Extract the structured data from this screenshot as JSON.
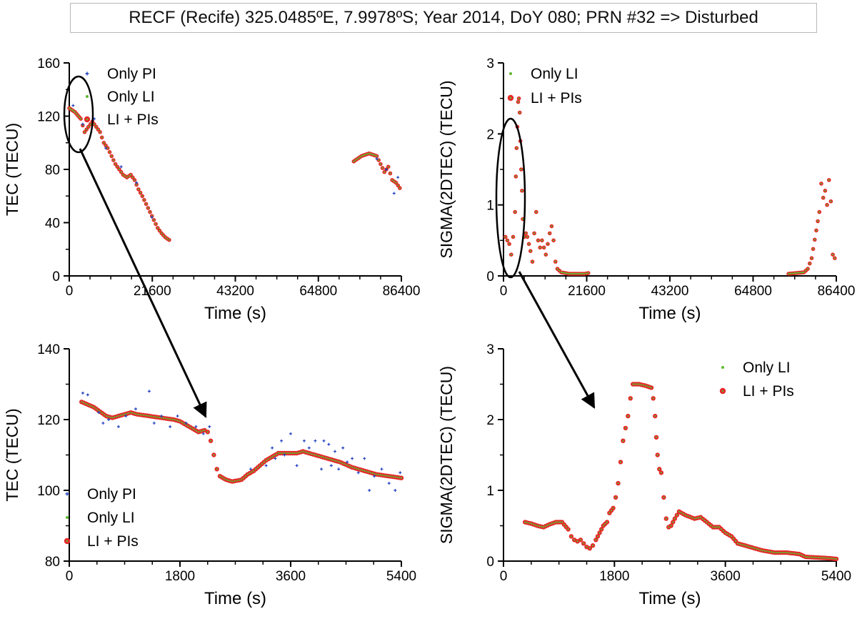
{
  "figure_title": "RECF (Recife)  325.0485ºE, 7.9978ºS; Year 2014, DoY 080; PRN #32 => Disturbed",
  "colors": {
    "only_pi": "#1f3fbf",
    "only_li": "#5fb82e",
    "li_pis": "#e8272a",
    "axis": "#000000"
  },
  "chart_data": [
    {
      "id": "tec-full",
      "type": "scatter",
      "xlabel": "Time (s)",
      "ylabel": "TEC (TECU)",
      "xlim": [
        0,
        86400
      ],
      "ylim": [
        0,
        160
      ],
      "xticks": [
        0,
        21600,
        43200,
        64800,
        86400
      ],
      "yticks": [
        0,
        40,
        80,
        120,
        160
      ],
      "legend": [
        "Only PI",
        "Only LI",
        "LI + PIs"
      ],
      "legend_position": "top-left",
      "series": [
        {
          "name": "LI + PIs",
          "points": [
            [
              0,
              126
            ],
            [
              1500,
              123
            ],
            [
              3000,
              118
            ],
            [
              4000,
              108
            ],
            [
              5000,
              112
            ],
            [
              6000,
              116
            ],
            [
              7000,
              112
            ],
            [
              8000,
              108
            ],
            [
              9000,
              100
            ],
            [
              10000,
              96
            ],
            [
              11000,
              90
            ],
            [
              12000,
              84
            ],
            [
              13000,
              80
            ],
            [
              14000,
              76
            ],
            [
              15000,
              74
            ],
            [
              16000,
              76
            ],
            [
              17000,
              72
            ],
            [
              18000,
              65
            ],
            [
              19000,
              60
            ],
            [
              20000,
              54
            ],
            [
              21000,
              48
            ],
            [
              22000,
              42
            ],
            [
              23000,
              36
            ],
            [
              24000,
              32
            ],
            [
              25000,
              29
            ],
            [
              26000,
              27
            ],
            [
              74000,
              86
            ],
            [
              76000,
              90
            ],
            [
              78000,
              92
            ],
            [
              80000,
              90
            ],
            [
              81000,
              84
            ],
            [
              82000,
              78
            ],
            [
              83000,
              82
            ],
            [
              84000,
              72
            ],
            [
              85000,
              70
            ],
            [
              86000,
              66
            ]
          ]
        },
        {
          "name": "Only PI",
          "points": [
            [
              1000,
              128
            ],
            [
              3500,
              114
            ],
            [
              6500,
              118
            ],
            [
              9500,
              96
            ],
            [
              13500,
              82
            ],
            [
              17500,
              70
            ],
            [
              21500,
              44
            ],
            [
              80000,
              88
            ],
            [
              82500,
              80
            ],
            [
              84500,
              62
            ],
            [
              85500,
              74
            ]
          ]
        }
      ]
    },
    {
      "id": "sigma-full",
      "type": "scatter",
      "xlabel": "Time (s)",
      "ylabel": "SIGMA(2DTEC) (TECU)",
      "xlim": [
        0,
        86400
      ],
      "ylim": [
        0,
        3
      ],
      "xticks": [
        0,
        21600,
        43200,
        64800,
        86400
      ],
      "yticks": [
        0,
        1,
        2,
        3
      ],
      "legend": [
        "Only LI",
        "LI + PIs"
      ],
      "legend_position": "top",
      "series": [
        {
          "name": "LI + PIs",
          "points": [
            [
              500,
              0.55
            ],
            [
              1000,
              0.5
            ],
            [
              1500,
              0.45
            ],
            [
              2000,
              0.3
            ],
            [
              2500,
              0.55
            ],
            [
              3000,
              0.9
            ],
            [
              3200,
              1.4
            ],
            [
              3400,
              1.8
            ],
            [
              3600,
              2.1
            ],
            [
              3800,
              2.45
            ],
            [
              4000,
              2.5
            ],
            [
              4200,
              2.3
            ],
            [
              4400,
              1.9
            ],
            [
              4600,
              1.5
            ],
            [
              4800,
              1.2
            ],
            [
              5000,
              0.8
            ],
            [
              5400,
              0.55
            ],
            [
              5800,
              0.6
            ],
            [
              6200,
              0.55
            ],
            [
              6600,
              0.45
            ],
            [
              7000,
              0.35
            ],
            [
              7500,
              0.2
            ],
            [
              8000,
              0.6
            ],
            [
              8500,
              0.9
            ],
            [
              9000,
              0.5
            ],
            [
              9500,
              0.4
            ],
            [
              10000,
              0.5
            ],
            [
              11000,
              0.3
            ],
            [
              12000,
              0.6
            ],
            [
              12500,
              0.7
            ],
            [
              13000,
              0.5
            ],
            [
              13500,
              0.2
            ],
            [
              14000,
              0.1
            ],
            [
              15000,
              0.05
            ],
            [
              17000,
              0.03
            ],
            [
              19000,
              0.03
            ],
            [
              21000,
              0.03
            ],
            [
              22000,
              0.04
            ],
            [
              74000,
              0.03
            ],
            [
              76000,
              0.04
            ],
            [
              78000,
              0.05
            ],
            [
              79000,
              0.1
            ],
            [
              80000,
              0.25
            ],
            [
              82000,
              0.9
            ],
            [
              82500,
              1.3
            ],
            [
              83000,
              1.1
            ],
            [
              83500,
              1.2
            ],
            [
              84000,
              1.0
            ],
            [
              84500,
              1.35
            ],
            [
              85000,
              1.05
            ],
            [
              85500,
              0.3
            ],
            [
              86000,
              0.25
            ]
          ]
        }
      ]
    },
    {
      "id": "tec-zoom",
      "type": "scatter",
      "xlabel": "Time (s)",
      "ylabel": "TEC (TECU)",
      "xlim": [
        0,
        5400
      ],
      "ylim": [
        80,
        140
      ],
      "xticks": [
        0,
        1800,
        3600,
        5400
      ],
      "yticks": [
        80,
        100,
        120,
        140
      ],
      "legend": [
        "Only PI",
        "Only LI",
        "LI + PIs"
      ],
      "legend_position": "bottom-left",
      "series": [
        {
          "name": "LI + PIs",
          "points": [
            [
              200,
              125
            ],
            [
              400,
              123.5
            ],
            [
              600,
              121
            ],
            [
              700,
              120.5
            ],
            [
              900,
              121.5
            ],
            [
              1000,
              122
            ],
            [
              1100,
              121.5
            ],
            [
              1300,
              121
            ],
            [
              1500,
              120.5
            ],
            [
              1700,
              120
            ],
            [
              1800,
              119.5
            ],
            [
              1900,
              118.5
            ],
            [
              2000,
              117.5
            ],
            [
              2100,
              116.5
            ],
            [
              2200,
              117
            ],
            [
              2250,
              116.5
            ],
            [
              2300,
              114
            ],
            [
              2350,
              110
            ],
            [
              2400,
              106
            ],
            [
              2450,
              104
            ],
            [
              2550,
              103
            ],
            [
              2650,
              102.5
            ],
            [
              2800,
              103
            ],
            [
              2900,
              104.5
            ],
            [
              3000,
              105.5
            ],
            [
              3100,
              107
            ],
            [
              3200,
              108.5
            ],
            [
              3300,
              109.5
            ],
            [
              3400,
              110.5
            ],
            [
              3500,
              110.5
            ],
            [
              3600,
              110.5
            ],
            [
              3700,
              110.5
            ],
            [
              3800,
              111
            ],
            [
              3900,
              110.5
            ],
            [
              4000,
              110
            ],
            [
              4200,
              109
            ],
            [
              4400,
              108
            ],
            [
              4600,
              106.5
            ],
            [
              4800,
              105.5
            ],
            [
              5000,
              104.5
            ],
            [
              5200,
              104
            ],
            [
              5400,
              103.5
            ]
          ]
        },
        {
          "name": "Only PI",
          "points": [
            [
              220,
              127.5
            ],
            [
              300,
              127
            ],
            [
              480,
              122
            ],
            [
              550,
              119
            ],
            [
              640,
              120
            ],
            [
              800,
              118
            ],
            [
              920,
              121
            ],
            [
              1080,
              123
            ],
            [
              1300,
              128
            ],
            [
              1380,
              119
            ],
            [
              1500,
              121
            ],
            [
              1640,
              118
            ],
            [
              1760,
              121
            ],
            [
              1900,
              119
            ],
            [
              2060,
              118
            ],
            [
              2180,
              116
            ],
            [
              2280,
              118
            ],
            [
              2950,
              106
            ],
            [
              3200,
              107
            ],
            [
              3300,
              112
            ],
            [
              3350,
              109
            ],
            [
              3450,
              114
            ],
            [
              3500,
              110
            ],
            [
              3600,
              116
            ],
            [
              3700,
              107
            ],
            [
              3820,
              114
            ],
            [
              3900,
              112
            ],
            [
              4000,
              114
            ],
            [
              4100,
              106
            ],
            [
              4140,
              114
            ],
            [
              4220,
              113
            ],
            [
              4260,
              107
            ],
            [
              4320,
              111
            ],
            [
              4380,
              106
            ],
            [
              4450,
              112
            ],
            [
              4520,
              108
            ],
            [
              4600,
              109
            ],
            [
              4700,
              105
            ],
            [
              4800,
              109
            ],
            [
              4880,
              100
            ],
            [
              4960,
              104
            ],
            [
              5080,
              106
            ],
            [
              5200,
              102
            ],
            [
              5300,
              100
            ],
            [
              5380,
              105
            ]
          ]
        }
      ]
    },
    {
      "id": "sigma-zoom",
      "type": "scatter",
      "xlabel": "Time (s)",
      "ylabel": "SIGMA(2DTEC) (TECU)",
      "xlim": [
        0,
        5400
      ],
      "ylim": [
        0,
        3
      ],
      "xticks": [
        0,
        1800,
        3600,
        5400
      ],
      "yticks": [
        0,
        1,
        2,
        3
      ],
      "legend": [
        "Only LI",
        "LI + PIs"
      ],
      "legend_position": "top-right",
      "series": [
        {
          "name": "LI + PIs",
          "points": [
            [
              350,
              0.55
            ],
            [
              450,
              0.53
            ],
            [
              550,
              0.5
            ],
            [
              650,
              0.48
            ],
            [
              750,
              0.52
            ],
            [
              850,
              0.55
            ],
            [
              950,
              0.55
            ],
            [
              1050,
              0.45
            ],
            [
              1100,
              0.35
            ],
            [
              1150,
              0.3
            ],
            [
              1200,
              0.28
            ],
            [
              1250,
              0.3
            ],
            [
              1300,
              0.25
            ],
            [
              1350,
              0.2
            ],
            [
              1400,
              0.18
            ],
            [
              1450,
              0.22
            ],
            [
              1500,
              0.3
            ],
            [
              1560,
              0.4
            ],
            [
              1620,
              0.5
            ],
            [
              1680,
              0.55
            ],
            [
              1720,
              0.68
            ],
            [
              1780,
              0.75
            ],
            [
              1820,
              0.9
            ],
            [
              1860,
              1.1
            ],
            [
              1900,
              1.4
            ],
            [
              1940,
              1.7
            ],
            [
              1980,
              1.88
            ],
            [
              2020,
              2.05
            ],
            [
              2060,
              2.3
            ],
            [
              2100,
              2.5
            ],
            [
              2200,
              2.5
            ],
            [
              2300,
              2.48
            ],
            [
              2400,
              2.45
            ],
            [
              2430,
              2.3
            ],
            [
              2460,
              2.05
            ],
            [
              2480,
              1.75
            ],
            [
              2500,
              1.5
            ],
            [
              2530,
              1.3
            ],
            [
              2560,
              1.25
            ],
            [
              2600,
              0.9
            ],
            [
              2640,
              0.6
            ],
            [
              2680,
              0.48
            ],
            [
              2720,
              0.5
            ],
            [
              2780,
              0.6
            ],
            [
              2850,
              0.7
            ],
            [
              2950,
              0.65
            ],
            [
              3100,
              0.6
            ],
            [
              3200,
              0.62
            ],
            [
              3300,
              0.55
            ],
            [
              3400,
              0.48
            ],
            [
              3500,
              0.48
            ],
            [
              3600,
              0.4
            ],
            [
              3700,
              0.35
            ],
            [
              3800,
              0.25
            ],
            [
              4000,
              0.2
            ],
            [
              4200,
              0.15
            ],
            [
              4400,
              0.12
            ],
            [
              4600,
              0.12
            ],
            [
              4800,
              0.1
            ],
            [
              4900,
              0.06
            ],
            [
              5100,
              0.05
            ],
            [
              5300,
              0.04
            ],
            [
              5400,
              0.03
            ]
          ]
        }
      ]
    }
  ]
}
